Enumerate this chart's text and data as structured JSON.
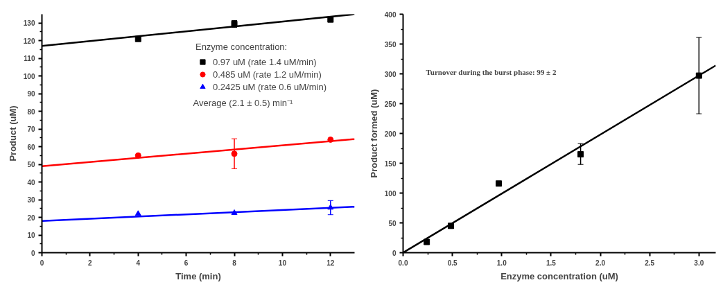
{
  "chart_data": [
    {
      "type": "scatter",
      "xlabel": "Time (min)",
      "ylabel": "Product (uM)",
      "legend_title": "Enzyme concentration:",
      "legend": "top right",
      "grid": false,
      "xlim": [
        0,
        13
      ],
      "ylim": [
        0,
        135
      ],
      "xticks": [
        0,
        2,
        4,
        6,
        8,
        10,
        12
      ],
      "yticks": [
        0,
        10,
        20,
        30,
        40,
        50,
        60,
        70,
        80,
        90,
        100,
        110,
        120,
        130
      ],
      "annotations": [
        "Average (2.1 ± 0.5) min⁻¹"
      ],
      "series": [
        {
          "name": "0.97 uM (rate 1.4 uM/min)",
          "marker": "square",
          "color": "#000000",
          "x": [
            4,
            8,
            12
          ],
          "values": [
            121,
            129.5,
            132
          ],
          "errors": [
            null,
            2,
            null
          ]
        },
        {
          "name": "0.485 uM (rate 1.2 uM/min)",
          "marker": "circle",
          "color": "#ff0000",
          "x": [
            4,
            8,
            12
          ],
          "values": [
            55,
            56,
            64
          ],
          "errors": [
            null,
            [
              47.5,
              64.5
            ],
            null
          ]
        },
        {
          "name": "0.2425 uM (rate 0.6 uM/min)",
          "marker": "triangle",
          "color": "#0000ff",
          "x": [
            4,
            8,
            12
          ],
          "values": [
            22,
            22.5,
            25.5
          ],
          "errors": [
            null,
            null,
            [
              21.5,
              29.5
            ]
          ]
        },
        {
          "type": "line",
          "color": "#000000",
          "x": [
            0,
            13
          ],
          "values": [
            117,
            135
          ]
        },
        {
          "type": "line",
          "color": "#ff0000",
          "x": [
            0,
            13
          ],
          "values": [
            49,
            64.3
          ]
        },
        {
          "type": "line",
          "color": "#0000ff",
          "x": [
            0,
            13
          ],
          "values": [
            18,
            26
          ]
        }
      ]
    },
    {
      "type": "scatter",
      "xlabel": "Enzyme concentration (uM)",
      "ylabel": "Product formed (uM)",
      "grid": false,
      "xlim": [
        0,
        3.17
      ],
      "ylim": [
        0,
        400
      ],
      "xticks": [
        {
          "value": 0,
          "label": "0.0"
        },
        0.5,
        {
          "value": 1,
          "label": "1.0"
        },
        1.5,
        {
          "value": 2,
          "label": "2.0"
        },
        2.5,
        {
          "value": 3,
          "label": "3.0"
        }
      ],
      "yticks": [
        0,
        50,
        100,
        150,
        200,
        250,
        300,
        350,
        400
      ],
      "annotations": [
        "Turnover during the burst phase: 99 ± 2"
      ],
      "series": [
        {
          "marker": "square",
          "color": "#000000",
          "x": [
            0.24,
            0.485,
            0.97,
            1.8,
            3.0
          ],
          "values": [
            18,
            45,
            116,
            165,
            297
          ],
          "errors": [
            null,
            4,
            null,
            [
              148,
              183
            ],
            [
              233,
              361
            ]
          ]
        },
        {
          "type": "line",
          "color": "#000000",
          "x": [
            0,
            3.17
          ],
          "values": [
            0,
            314
          ]
        }
      ]
    }
  ]
}
